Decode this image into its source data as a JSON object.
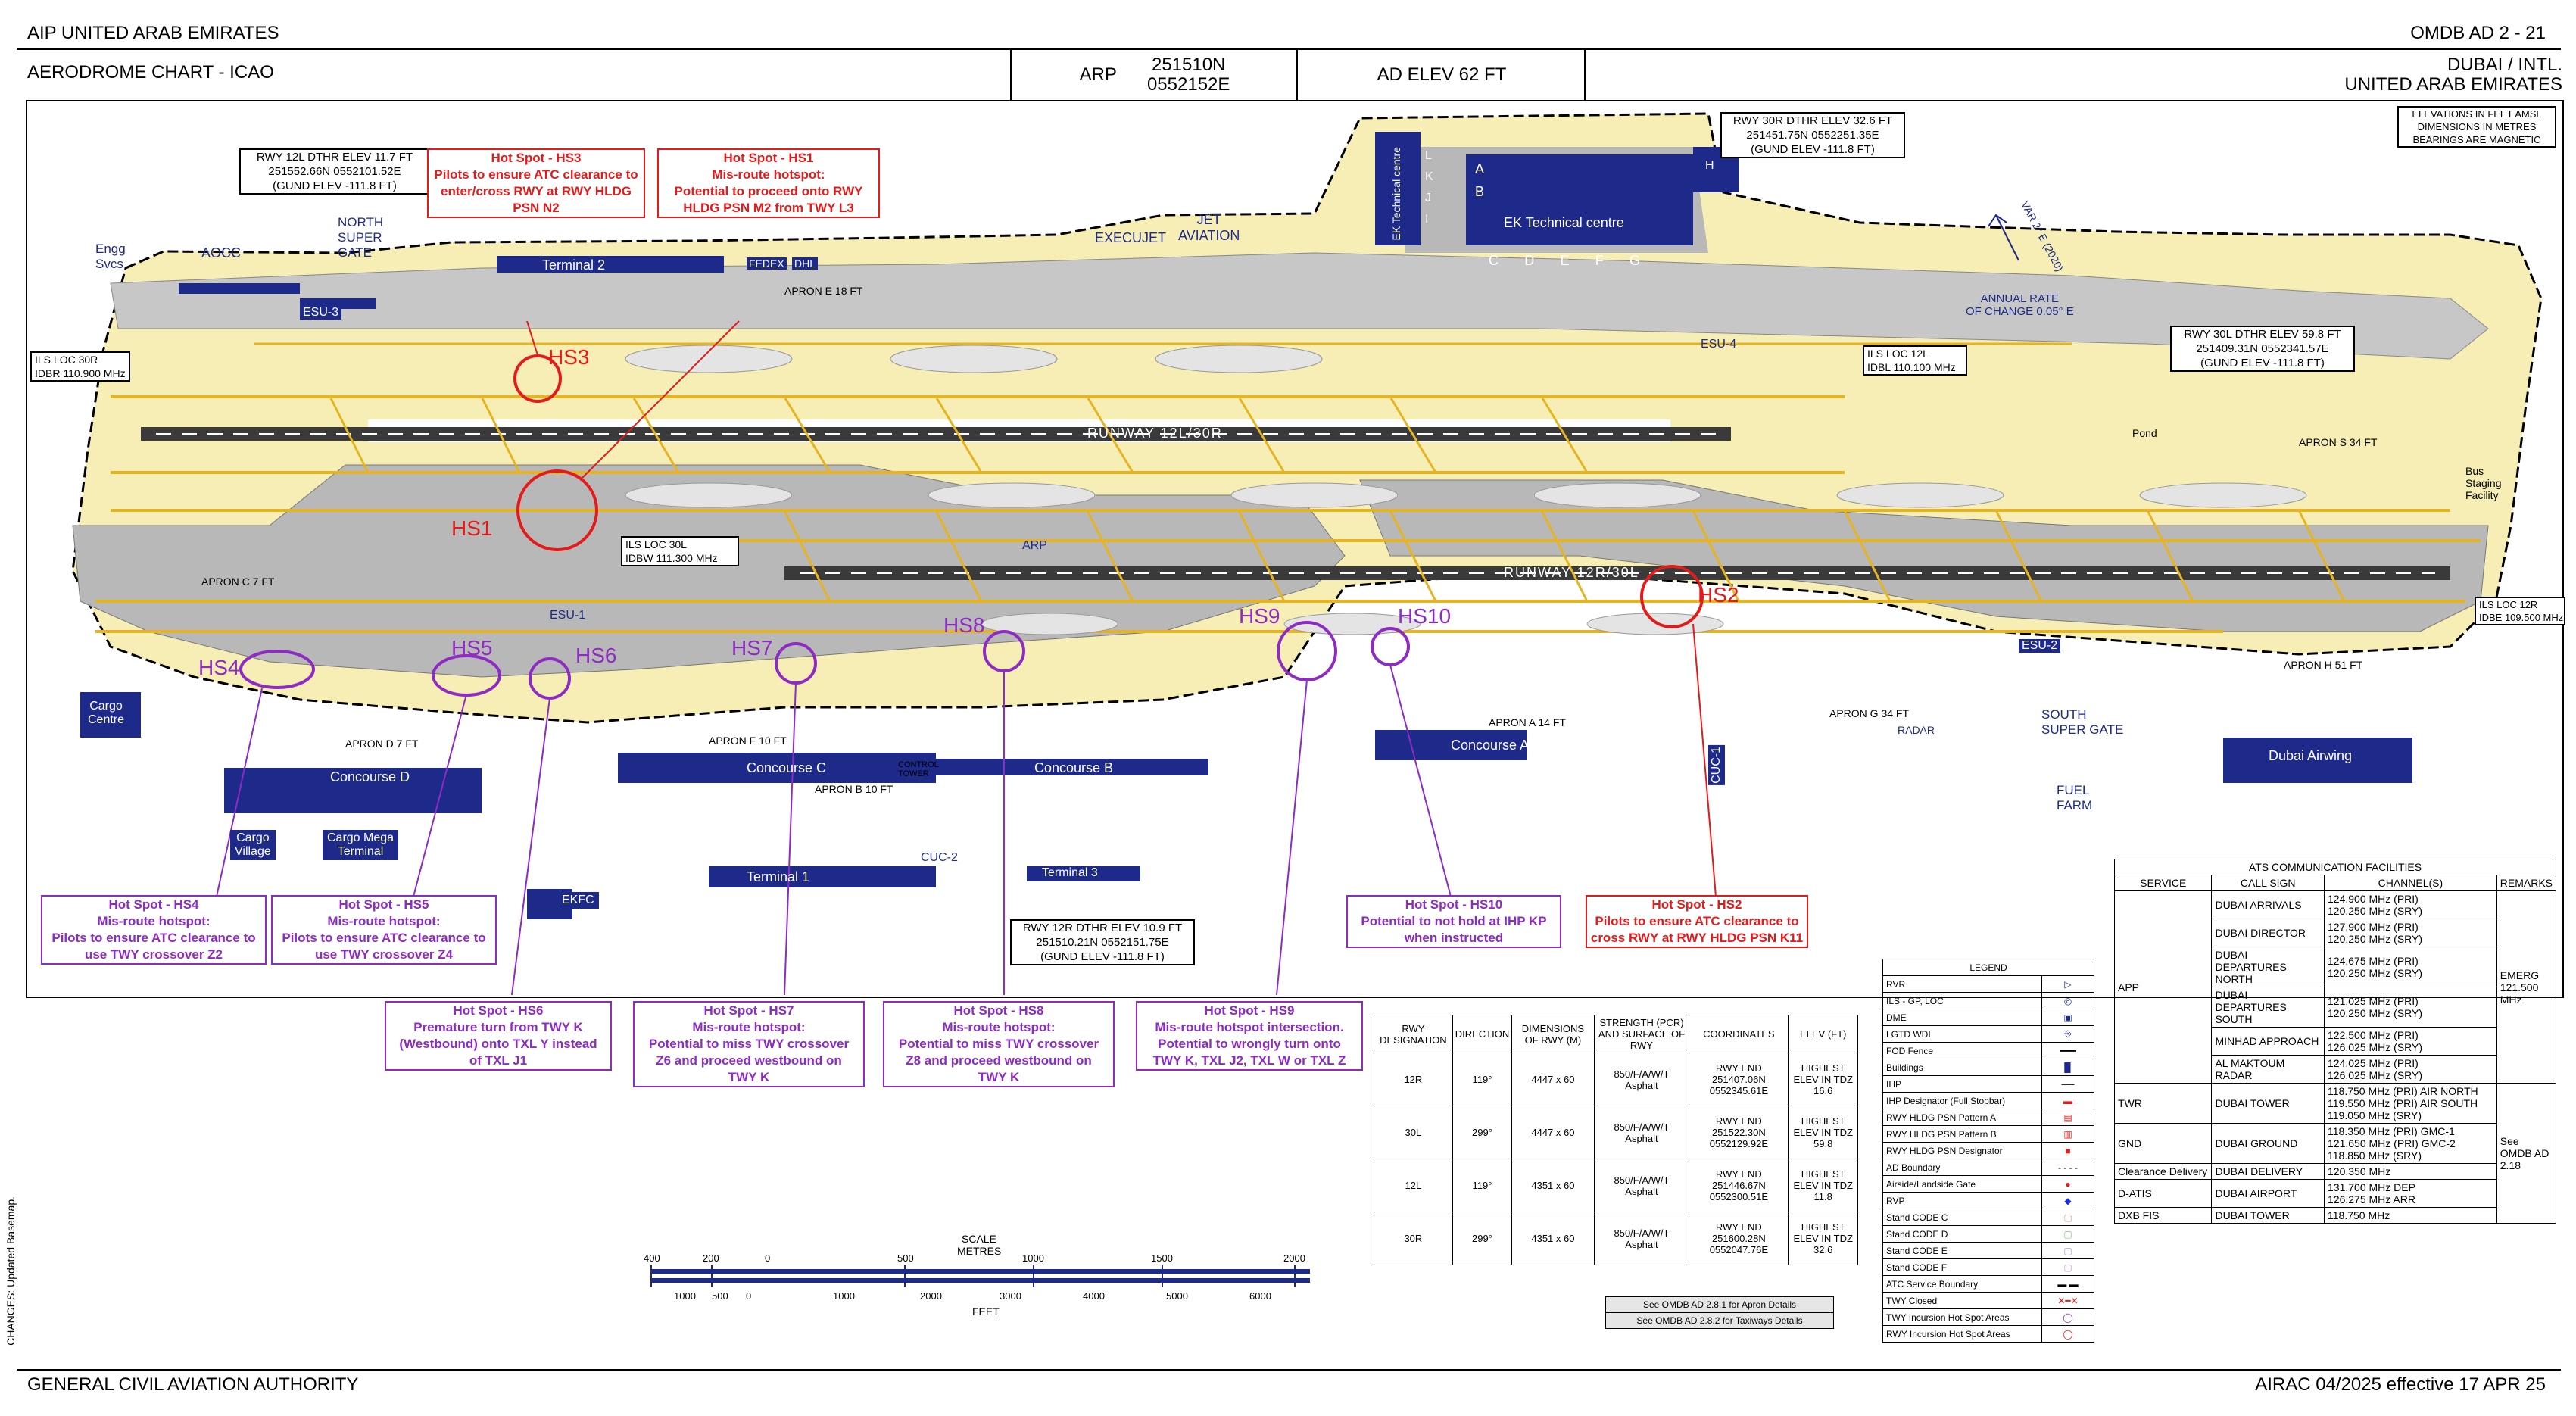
{
  "header": {
    "top_left": "AIP  UNITED ARAB EMIRATES",
    "top_right": "OMDB AD 2 - 21",
    "title": "AERODROME CHART - ICAO",
    "arp_label": "ARP",
    "arp_coords": [
      "251510N",
      "0552152E"
    ],
    "ad_elev": "AD ELEV 62 FT",
    "location": [
      "DUBAI / INTL.",
      "UNITED ARAB EMIRATES"
    ]
  },
  "notes_box": [
    "ELEVATIONS IN FEET AMSL",
    "DIMENSIONS IN METRES",
    "BEARINGS ARE MAGNETIC"
  ],
  "variation": {
    "annual_rate": [
      "ANNUAL RATE",
      "OF CHANGE 0.05° E"
    ],
    "var": "VAR 2° E (2020)"
  },
  "threshold_boxes": {
    "rwy12l": [
      "RWY 12L DTHR ELEV 11.7 FT",
      "251552.66N 0552101.52E",
      "(GUND ELEV -111.8 FT)"
    ],
    "rwy30r": [
      "RWY 30R DTHR ELEV 32.6 FT",
      "251451.75N 0552251.35E",
      "(GUND ELEV -111.8 FT)"
    ],
    "rwy30l": [
      "RWY 30L DTHR ELEV 59.8 FT",
      "251409.31N 0552341.57E",
      "(GUND ELEV -111.8 FT)"
    ],
    "rwy12r": [
      "RWY 12R DTHR ELEV 10.9 FT",
      "251510.21N 0552151.75E",
      "(GUND ELEV -111.8 FT)"
    ]
  },
  "ils_boxes": {
    "loc30r": [
      "ILS LOC 30R",
      "IDBR 110.900 MHz"
    ],
    "loc30l": [
      "ILS LOC 30L",
      "IDBW 111.300 MHz"
    ],
    "loc12l": [
      "ILS LOC 12L",
      "IDBL 110.100 MHz"
    ],
    "loc12r": [
      "ILS LOC 12R",
      "IDBE 109.500 MHz"
    ]
  },
  "runways": {
    "north": "RUNWAY 12L/30R",
    "south": "RUNWAY 12R/30L"
  },
  "hotspots_red": [
    {
      "id": "hs3",
      "title": "Hot Spot - HS3",
      "lines": [
        "Pilots to ensure ATC clearance to",
        "enter/cross RWY at RWY HLDG",
        "PSN N2"
      ]
    },
    {
      "id": "hs1",
      "title": "Hot Spot - HS1",
      "lines": [
        "Mis-route hotspot:",
        "Potential to proceed onto RWY",
        "HLDG PSN M2 from TWY L3"
      ]
    },
    {
      "id": "hs2",
      "title": "Hot Spot - HS2",
      "lines": [
        "Pilots to ensure ATC clearance to",
        "cross RWY at RWY HLDG PSN K11"
      ]
    }
  ],
  "hotspots_purple": [
    {
      "id": "hs4",
      "title": "Hot Spot - HS4",
      "lines": [
        "Mis-route hotspot:",
        "Pilots to ensure ATC clearance to",
        "use TWY crossover Z2"
      ]
    },
    {
      "id": "hs5",
      "title": "Hot Spot - HS5",
      "lines": [
        "Mis-route hotspot:",
        "Pilots to ensure ATC clearance to",
        "use TWY crossover Z4"
      ]
    },
    {
      "id": "hs10",
      "title": "Hot Spot - HS10",
      "lines": [
        "Potential to not hold at IHP KP",
        "when instructed"
      ]
    },
    {
      "id": "hs6",
      "title": "Hot Spot - HS6",
      "lines": [
        "Premature turn from TWY K",
        "(Westbound) onto TXL Y instead",
        "of TXL J1"
      ]
    },
    {
      "id": "hs7",
      "title": "Hot Spot - HS7",
      "lines": [
        "Mis-route hotspot:",
        "Potential to miss TWY crossover",
        "Z6 and proceed westbound on",
        "TWY K"
      ]
    },
    {
      "id": "hs8",
      "title": "Hot Spot - HS8",
      "lines": [
        "Mis-route hotspot:",
        "Potential to miss TWY crossover",
        "Z8 and proceed westbound on",
        "TWY K"
      ]
    },
    {
      "id": "hs9",
      "title": "Hot Spot - HS9",
      "lines": [
        "Mis-route hotspot intersection.",
        "Potential to wrongly turn onto",
        "TWY K, TXL J2, TXL W or TXL Z"
      ]
    }
  ],
  "hs_map_labels": [
    "HS1",
    "HS2",
    "HS3",
    "HS4",
    "HS5",
    "HS6",
    "HS7",
    "HS8",
    "HS9",
    "HS10"
  ],
  "facilities": {
    "terminal2": "Terminal 2",
    "terminal1": "Terminal 1",
    "terminal3": "Terminal 3",
    "concourse_a": "Concourse A",
    "concourse_b": "Concourse B",
    "concourse_c": "Concourse C",
    "concourse_d": "Concourse D",
    "ek_tech": "EK Technical centre",
    "ek_tech_v": "EK Technical centre",
    "cargo_centre": [
      "Cargo",
      "Centre"
    ],
    "cargo_village": [
      "Cargo",
      "Village"
    ],
    "cargo_mega": [
      "Cargo Mega",
      "Terminal"
    ],
    "ekfc": "EKFC",
    "dubai_airwing": "Dubai Airwing",
    "aocc": "AOCC",
    "engg": [
      "Engg",
      "Svcs"
    ],
    "north_gate": [
      "NORTH",
      "SUPER",
      "GATE"
    ],
    "south_gate": [
      "SOUTH",
      "SUPER GATE"
    ],
    "fuel_farm": [
      "FUEL",
      "FARM"
    ],
    "execujet": "EXECUJET",
    "jet_aviation": [
      "JET",
      "AVIATION"
    ],
    "fedex": "FEDEX",
    "dhl": "DHL",
    "bus_staging": [
      "Bus",
      "Staging",
      "Facility"
    ],
    "pond": "Pond",
    "esu1": "ESU-1",
    "esu2": "ESU-2",
    "esu3": "ESU-3",
    "esu4": "ESU-4",
    "cuc1": "CUC-1",
    "cuc2": "CUC-2",
    "arp": "ARP",
    "radar": "RADAR",
    "tower": [
      "CONTROL",
      "TOWER"
    ],
    "hangars_ek": [
      "A",
      "B",
      "C",
      "D",
      "E",
      "F",
      "G"
    ],
    "hangars_v": [
      "L",
      "K",
      "J",
      "I"
    ],
    "h": "H"
  },
  "aprons": [
    "APRON C  7 FT",
    "APRON D  7 FT",
    "APRON F  10 FT",
    "APRON B  10 FT",
    "APRON A  14 FT",
    "APRON G  34 FT",
    "APRON H  51 FT",
    "APRON S  34 FT",
    "APRON E  18 FT"
  ],
  "runway_table": {
    "headers": [
      "RWY DESIGNATION",
      "DIRECTION",
      "DIMENSIONS OF RWY (M)",
      "STRENGTH (PCR) AND SURFACE OF RWY",
      "COORDINATES",
      "ELEV (FT)"
    ],
    "rows": [
      [
        "12R",
        "119°",
        "4447 x 60",
        "850/F/A/W/T Asphalt",
        "RWY END 251407.06N 0552345.61E",
        "HIGHEST ELEV IN TDZ 16.6"
      ],
      [
        "30L",
        "299°",
        "4447 x 60",
        "850/F/A/W/T Asphalt",
        "RWY END 251522.30N 0552129.92E",
        "HIGHEST ELEV IN TDZ 59.8"
      ],
      [
        "12L",
        "119°",
        "4351 x 60",
        "850/F/A/W/T Asphalt",
        "RWY END 251446.67N 0552300.51E",
        "HIGHEST ELEV IN TDZ 11.8"
      ],
      [
        "30R",
        "299°",
        "4351 x 60",
        "850/F/A/W/T Asphalt",
        "RWY END 251600.28N 0552047.76E",
        "HIGHEST ELEV IN TDZ 32.6"
      ]
    ]
  },
  "see_notes": [
    "See OMDB AD 2.8.1 for Apron Details",
    "See OMDB AD 2.8.2 for Taxiways Details"
  ],
  "legend": {
    "title": "LEGEND",
    "items": [
      "RVR",
      "ILS - GP, LOC",
      "DME",
      "LGTD WDI",
      "FOD Fence",
      "Buildings",
      "IHP",
      "IHP Designator (Full Stopbar)",
      "RWY HLDG PSN Pattern A",
      "RWY HLDG PSN Pattern B",
      "RWY HLDG PSN Designator",
      "AD Boundary",
      "Airside/Landside Gate",
      "RVP",
      "Stand CODE C",
      "Stand CODE D",
      "Stand CODE E",
      "Stand CODE F",
      "ATC Service Boundary",
      "TWY Closed",
      "TWY Incursion Hot Spot Areas",
      "RWY Incursion Hot Spot Areas"
    ]
  },
  "ats": {
    "title": "ATS COMMUNICATION FACILITIES",
    "headers": [
      "SERVICE",
      "CALL SIGN",
      "CHANNEL(S)",
      "REMARKS"
    ],
    "app_service": "APP",
    "app_remark": "EMERG 121.500 MHz",
    "app_units": [
      {
        "call": "DUBAI ARRIVALS",
        "ch": [
          "124.900 MHz (PRI)",
          "120.250 MHz (SRY)"
        ]
      },
      {
        "call": "DUBAI DIRECTOR",
        "ch": [
          "127.900 MHz (PRI)",
          "120.250 MHz (SRY)"
        ]
      },
      {
        "call": "DUBAI DEPARTURES NORTH",
        "ch": [
          "124.675 MHz (PRI)",
          "120.250 MHz (SRY)"
        ]
      },
      {
        "call": "DUBAI DEPARTURES SOUTH",
        "ch": [
          "121.025 MHz (PRI)",
          "120.250 MHz (SRY)"
        ]
      },
      {
        "call": "MINHAD APPROACH",
        "ch": [
          "122.500 MHz (PRI)",
          "126.025 MHz (SRY)"
        ]
      },
      {
        "call": "AL MAKTOUM RADAR",
        "ch": [
          "124.025 MHz (PRI)",
          "126.025 MHz (SRY)"
        ]
      }
    ],
    "twr": {
      "service": "TWR",
      "call": "DUBAI TOWER",
      "ch": [
        "118.750 MHz (PRI) AIR NORTH",
        "119.550 MHz (PRI) AIR SOUTH",
        "119.050 MHz (SRY)"
      ]
    },
    "gnd": {
      "service": "GND",
      "call": "DUBAI GROUND",
      "ch": [
        "118.350 MHz (PRI) GMC-1",
        "121.650 MHz (PRI) GMC-2",
        "118.850 MHz (SRY)"
      ],
      "remark": "See OMDB AD 2.18"
    },
    "others": [
      {
        "service": "Clearance Delivery",
        "call": "DUBAI DELIVERY",
        "ch": [
          "120.350 MHz"
        ]
      },
      {
        "service": "D-ATIS",
        "call": "DUBAI AIRPORT",
        "ch": [
          "131.700 MHz DEP",
          "126.275 MHz ARR"
        ]
      },
      {
        "service": "DXB FIS",
        "call": "DUBAI TOWER",
        "ch": [
          "118.750 MHz"
        ]
      }
    ]
  },
  "scale": {
    "title": "SCALE",
    "metres_label": "METRES",
    "feet_label": "FEET",
    "metres_ticks": [
      "400",
      "200",
      "0",
      "500",
      "1000",
      "1500",
      "2000"
    ],
    "feet_ticks": [
      "1000",
      "500",
      "0",
      "1000",
      "2000",
      "3000",
      "4000",
      "5000",
      "6000"
    ]
  },
  "side_note": "CHANGES: Updated Basemap.",
  "footer": {
    "left": "GENERAL CIVIL AVIATION AUTHORITY",
    "right": "AIRAC 04/2025 effective 17 APR 25"
  },
  "colors": {
    "land": "#f6eeb4",
    "pavement": "#b8b8b8",
    "runway": "#3a3a3a",
    "taxiway": "#e6b422",
    "building": "#1d2a8a",
    "hotspot_red": "#e31b1b",
    "hotspot_purple": "#8e2bc2"
  }
}
